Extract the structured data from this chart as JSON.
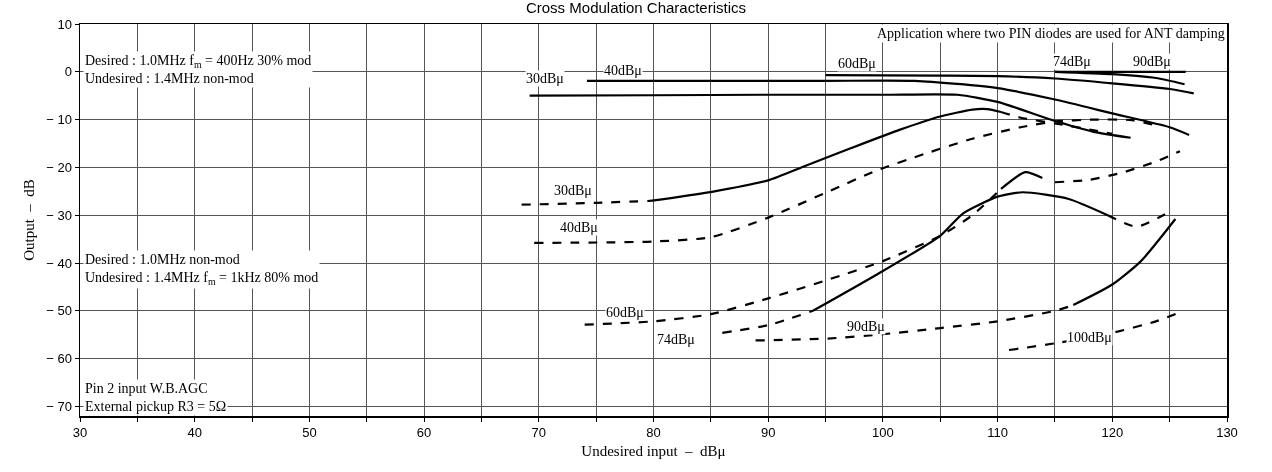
{
  "chart_data": {
    "type": "line",
    "title": "Cross Modulation Characteristics",
    "xlabel": "Undesired input  –  dBμ",
    "ylabel": "Output  –  dB",
    "xlim": [
      30,
      130
    ],
    "ylim": [
      -72,
      10
    ],
    "xticks": [
      30,
      {
        "value": 35,
        "label": null
      },
      40,
      {
        "value": 45,
        "label": null
      },
      50,
      {
        "value": 55,
        "label": null
      },
      60,
      {
        "value": 65,
        "label": null
      },
      70,
      {
        "value": 75,
        "label": null
      },
      80,
      {
        "value": 85,
        "label": null
      },
      90,
      {
        "value": 95,
        "label": null
      },
      100,
      {
        "value": 105,
        "label": null
      },
      110,
      {
        "value": 115,
        "label": null
      },
      120,
      {
        "value": 125,
        "label": null
      },
      130
    ],
    "yticks": [
      10,
      0,
      {
        "value": -10,
        "label": "− 10"
      },
      {
        "value": -20,
        "label": "− 20"
      },
      {
        "value": -30,
        "label": "− 30"
      },
      {
        "value": -40,
        "label": "− 40"
      },
      {
        "value": -50,
        "label": "− 50"
      },
      {
        "value": -60,
        "label": "− 60"
      },
      {
        "value": -70,
        "label": "− 70"
      }
    ],
    "grid": true,
    "marker": "none",
    "series": [
      {
        "color": "#000000",
        "line_style": "solid",
        "x": [
          69.2,
          80,
          90,
          100,
          106.5,
          110,
          115,
          118.3,
          121.6
        ],
        "values": [
          -5.0,
          -4.9,
          -4.8,
          -4.8,
          -4.8,
          -6.3,
          -10.3,
          -12.5,
          -13.8
        ]
      },
      {
        "color": "#000000",
        "line_style": "solid",
        "x": [
          74.2,
          85,
          95,
          102.8,
          110,
          115,
          120,
          125,
          126.7
        ],
        "values": [
          -1.9,
          -1.9,
          -1.9,
          -1.9,
          -3.4,
          -5.8,
          -8.7,
          -11.6,
          -13.2
        ]
      },
      {
        "color": "#000000",
        "line_style": "solid",
        "x": [
          95,
          105,
          110,
          115,
          120,
          125,
          127.1
        ],
        "values": [
          -0.7,
          -0.8,
          -0.9,
          -1.4,
          -2.4,
          -3.6,
          -4.5
        ]
      },
      {
        "color": "#000000",
        "line_style": "solid",
        "x": [
          115,
          120,
          123.8,
          126.3
        ],
        "values": [
          0,
          -0.5,
          -1.3,
          -2.6
        ]
      },
      {
        "color": "#000000",
        "line_style": "solid",
        "x": [
          115,
          120,
          126.4
        ],
        "values": [
          0,
          0,
          0
        ]
      },
      {
        "color": "#000000",
        "line_style": "dashed",
        "x": [
          68.5,
          75,
          79.7
        ],
        "values": [
          -27.8,
          -27.4,
          -27.0
        ]
      },
      {
        "color": "#000000",
        "line_style": "solid",
        "x": [
          79.7,
          85.1,
          90,
          93.1,
          97.3,
          101.5,
          104.9,
          107.8,
          109.1,
          110.3
        ],
        "values": [
          -27.0,
          -25.1,
          -22.7,
          -19.8,
          -15.9,
          -12.1,
          -9.4,
          -7.9,
          -7.8,
          -8.4
        ]
      },
      {
        "color": "#000000",
        "line_style": "dashed",
        "x": [
          110.3,
          112,
          115,
          118.3,
          120
        ],
        "values": [
          -8.4,
          -9.6,
          -10.8,
          -12.2,
          -13.0
        ]
      },
      {
        "color": "#000000",
        "line_style": "dashed",
        "x": [
          69.6,
          80,
          85,
          90,
          95.2,
          99.4,
          103.6,
          107.8,
          112,
          115,
          118.3,
          121.7,
          124.2
        ],
        "values": [
          -35.8,
          -35.5,
          -34.6,
          -30.5,
          -25.1,
          -20.7,
          -17.2,
          -14.0,
          -11.6,
          -10.4,
          -10.0,
          -10.1,
          -11.4
        ]
      },
      {
        "color": "#000000",
        "line_style": "dashed",
        "x": [
          74,
          80,
          85,
          90,
          95.2,
          100,
          105,
          107.8,
          110.3
        ],
        "values": [
          -52.9,
          -52.2,
          -50.7,
          -47.4,
          -43.5,
          -39.6,
          -34.3,
          -30.0,
          -24.5
        ]
      },
      {
        "color": "#000000",
        "line_style": "solid",
        "x": [
          110.3,
          112.4,
          113.9
        ],
        "values": [
          -24.5,
          -21.0,
          -22.2
        ]
      },
      {
        "color": "#000000",
        "line_style": "dashed",
        "x": [
          115,
          118,
          121,
          124,
          125.9
        ],
        "values": [
          -23.1,
          -22.6,
          -21.0,
          -18.6,
          -16.6
        ]
      },
      {
        "color": "#000000",
        "line_style": "dashed",
        "x": [
          86,
          90,
          93.9
        ],
        "values": [
          -54.6,
          -53.0,
          -50.0
        ]
      },
      {
        "color": "#000000",
        "line_style": "solid",
        "x": [
          93.9,
          99.4,
          105,
          107,
          110,
          112.2,
          116.2,
          119.6
        ],
        "values": [
          -50.0,
          -42.5,
          -34.3,
          -29.6,
          -26.1,
          -25.2,
          -26.6,
          -30.0
        ]
      },
      {
        "color": "#000000",
        "line_style": "dashed",
        "x": [
          119.6,
          122.1,
          124.6
        ],
        "values": [
          -30.0,
          -32.4,
          -29.8
        ]
      },
      {
        "color": "#000000",
        "line_style": "dashed",
        "x": [
          88.9,
          95.2,
          100,
          105,
          110,
          115,
          116.6
        ],
        "values": [
          -56.2,
          -55.8,
          -54.9,
          -53.6,
          -52.2,
          -50.0,
          -48.8
        ]
      },
      {
        "color": "#000000",
        "line_style": "solid",
        "x": [
          116.6,
          120,
          122.5,
          125.5
        ],
        "values": [
          -48.8,
          -44.5,
          -39.6,
          -30.8
        ]
      },
      {
        "color": "#000000",
        "line_style": "dashed",
        "x": [
          111,
          115,
          120,
          123.8,
          126.1
        ],
        "values": [
          -58.2,
          -56.8,
          -54.6,
          -52.2,
          -50.1
        ]
      }
    ],
    "annotations": [
      "Application where two PIN diodes are used for ANT damping",
      "Desired : 1.0MHz f$_{m}$ = 400Hz 30% mod\nUndesired : 1.4MHz non-mod",
      "Desired : 1.0MHz non-mod\nUndesired : 1.4MHz f$_{m}$ = 1kHz 80% mod",
      "Pin 2 input W.B.AGC\nExternal pickup R3 = 5Ω",
      {
        "text": "30dBμ",
        "x": 70.5,
        "y": -1.5
      },
      {
        "text": "40dBμ",
        "x": 77.3,
        "y": 0.3
      },
      {
        "text": "60dBμ",
        "x": 97.7,
        "y": 1.7
      },
      {
        "text": "74dBμ",
        "x": 116.5,
        "y": 2.2
      },
      {
        "text": "90dBμ",
        "x": 123.5,
        "y": 2.2
      },
      {
        "text": "30dBμ",
        "x": 73,
        "y": -24.8
      },
      {
        "text": "40dBμ",
        "x": 73.5,
        "y": -32.5
      },
      {
        "text": "60dBμ",
        "x": 77.5,
        "y": -50.3
      },
      {
        "text": "74dBμ",
        "x": 82,
        "y": -56
      },
      {
        "text": "90dBμ",
        "x": 98.5,
        "y": -53.3
      },
      {
        "text": "100dBμ",
        "x": 118,
        "y": -55.5
      }
    ]
  }
}
